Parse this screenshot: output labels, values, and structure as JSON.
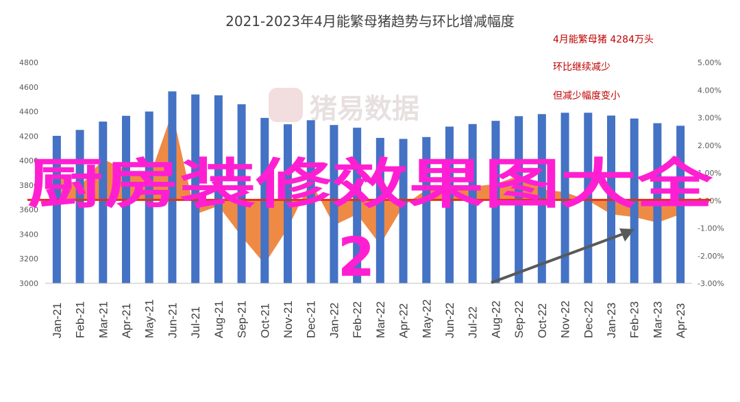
{
  "chart_data": {
    "type": "bar",
    "title": "2021-2023年4月能繁母猪趋势与环比增减幅度",
    "categories": [
      "Jan-21",
      "Feb-21",
      "Mar-21",
      "Apr-21",
      "May-21",
      "Jun-21",
      "Jul-21",
      "Aug-21",
      "Sep-21",
      "Oct-21",
      "Nov-21",
      "Dec-21",
      "Jan-22",
      "Feb-22",
      "Mar-22",
      "Apr-22",
      "May-22",
      "Jun-22",
      "Jul-22",
      "Aug-22",
      "Sep-22",
      "Oct-22",
      "Nov-22",
      "Dec-22",
      "Jan-23",
      "Feb-23",
      "Mar-23",
      "Apr-23"
    ],
    "series": [
      {
        "type": "bar",
        "axis": "left",
        "color": "#4472c4",
        "values": [
          4202,
          4250,
          4318,
          4365,
          4400,
          4564,
          4539,
          4532,
          4459,
          4348,
          4296,
          4329,
          4290,
          4268,
          4185,
          4177,
          4192,
          4277,
          4298,
          4324,
          4362,
          4379,
          4390,
          4390,
          4367,
          4343,
          4305,
          4284
        ]
      },
      {
        "type": "area",
        "axis": "right",
        "color": "#ed7d31",
        "values": [
          1.0,
          0.5,
          1.5,
          1.1,
          0.8,
          3.2,
          -0.5,
          -0.2,
          -1.3,
          -2.3,
          -1.0,
          0.7,
          -0.9,
          -0.5,
          -1.6,
          -0.2,
          0.4,
          0.3,
          0.5,
          0.6,
          0.9,
          0.4,
          0.3,
          0.0,
          -0.5,
          -0.6,
          -0.8,
          -0.5
        ]
      }
    ],
    "y_left": {
      "min": 3000,
      "max": 4800,
      "ticks": [
        "3000",
        "3200",
        "3400",
        "3600",
        "3800",
        "4000",
        "4200",
        "4400",
        "4600",
        "4800"
      ]
    },
    "y_right": {
      "min": -3,
      "max": 5,
      "ticks": [
        "-3.00%",
        "-2.00%",
        "-1.00%",
        "0.00%",
        "1.00%",
        "2.00%",
        "3.00%",
        "4.00%",
        "5.00%"
      ]
    },
    "reference_line": {
      "value": 3680,
      "color": "#e0301e"
    },
    "annotations": [
      "4月能繁母猪 4284万头",
      "环比继续减少",
      "但减少幅度变小"
    ],
    "annotation_color": "#c00000",
    "arrow_color": "#595959",
    "grid": false,
    "legend": "none"
  },
  "watermark": "猪易数据",
  "overlay": {
    "line1": "厨房装修效果图大全",
    "line2": "2",
    "color": "#ff1fd2"
  }
}
